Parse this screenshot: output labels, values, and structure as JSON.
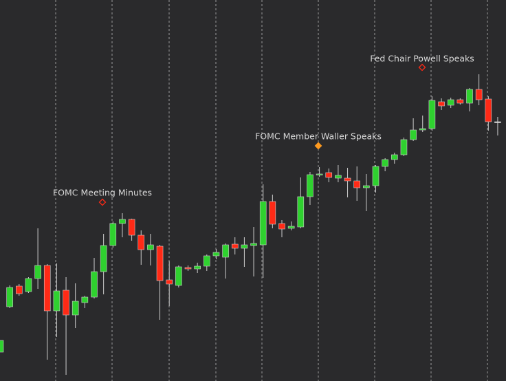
{
  "chart_data": {
    "type": "candlestick",
    "ylim": [
      0,
      554
    ],
    "up_color": "#2fd12f",
    "down_color": "#ff2a16",
    "flat_color": "#d8d8d8",
    "series": [
      {
        "name": "open",
        "values": [
          42,
          108,
          138,
          130,
          149,
          168,
          102,
          132,
          96,
          114,
          122,
          159,
          197,
          229,
          235,
          212,
          191,
          196,
          147,
          139,
          165,
          163,
          167,
          182,
          180,
          199,
          193,
          197,
          198,
          261,
          229,
          222,
          224,
          268,
          300,
          303,
          295,
          295,
          291,
          281,
          284,
          312,
          322,
          329,
          351,
          365,
          367,
          406,
          401,
          409,
          404,
          424,
          410,
          377
        ]
      },
      {
        "name": "high",
        "values": [
          59,
          139,
          141,
          151,
          222,
          170,
          171,
          151,
          142,
          124,
          179,
          214,
          232,
          244,
          236,
          219,
          214,
          198,
          174,
          168,
          168,
          172,
          184,
          192,
          200,
          209,
          209,
          224,
          286,
          271,
          234,
          232,
          296,
          304,
          311,
          309,
          314,
          310,
          312,
          301,
          314,
          324,
          332,
          354,
          382,
          386,
          414,
          411,
          412,
          411,
          426,
          446,
          414,
          384
        ]
      },
      {
        "name": "low",
        "values": [
          42,
          106,
          124,
          128,
          134,
          31,
          64,
          9,
          77,
          106,
          120,
          126,
          194,
          209,
          204,
          169,
          168,
          89,
          109,
          136,
          160,
          157,
          160,
          177,
          149,
          184,
          166,
          152,
          150,
          222,
          209,
          219,
          222,
          256,
          297,
          289,
          289,
          267,
          262,
          247,
          274,
          305,
          316,
          327,
          349,
          362,
          364,
          394,
          397,
          402,
          392,
          401,
          364,
          357
        ]
      },
      {
        "name": "close",
        "values": [
          59,
          136,
          127,
          149,
          168,
          102,
          131,
          96,
          116,
          122,
          159,
          197,
          229,
          235,
          212,
          191,
          198,
          146,
          141,
          166,
          163,
          167,
          182,
          187,
          198,
          193,
          198,
          200,
          261,
          228,
          221,
          225,
          268,
          300,
          301,
          296,
          299,
          291,
          281,
          284,
          312,
          322,
          329,
          351,
          365,
          367,
          408,
          400,
          409,
          404,
          424,
          409,
          377,
          377
        ]
      }
    ],
    "annotations": [
      {
        "text": "FOMC Meeting Minutes",
        "color": "#ff2a16"
      },
      {
        "text": "FOMC Member Waller Speaks",
        "color": "#ff9a1f"
      },
      {
        "text": "Fed Chair Powell Speaks",
        "color": "#ff2a16"
      }
    ]
  }
}
